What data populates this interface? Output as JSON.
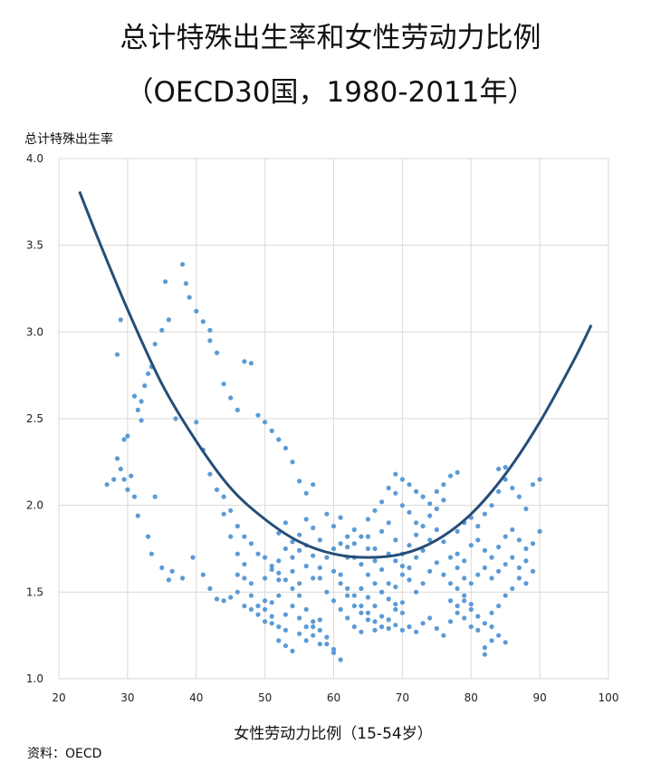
{
  "chart_data": {
    "type": "scatter",
    "title": "总计特殊出生率和女性劳动力比例",
    "subtitle": "（OECD30国，1980-2011年）",
    "xlabel": "女性劳动力比例（15-54岁）",
    "ylabel": "总计特殊出生率",
    "xlim": [
      20,
      100
    ],
    "ylim": [
      1.0,
      4.0
    ],
    "x_ticks": [
      "20",
      "30",
      "40",
      "50",
      "60",
      "70",
      "80",
      "90",
      "100"
    ],
    "y_ticks": [
      "1.0",
      "1.5",
      "2.0",
      "2.5",
      "3.0",
      "3.5",
      "4.0"
    ],
    "grid": true,
    "colors": {
      "points": "#5b9bd5",
      "trend": "#254e78",
      "grid": "#d9d9d9"
    },
    "trend_line": {
      "x": [
        23,
        26,
        30,
        35,
        40,
        45,
        50,
        55,
        60,
        65,
        70,
        75,
        80,
        85,
        90,
        95,
        97.5
      ],
      "y": [
        3.81,
        3.51,
        3.13,
        2.7,
        2.37,
        2.1,
        1.92,
        1.79,
        1.72,
        1.7,
        1.72,
        1.8,
        1.95,
        2.18,
        2.48,
        2.84,
        3.04
      ]
    },
    "points": [
      [
        27,
        2.12
      ],
      [
        28,
        2.15
      ],
      [
        28.5,
        2.27
      ],
      [
        29,
        2.21
      ],
      [
        29.5,
        2.15
      ],
      [
        30,
        2.09
      ],
      [
        30.5,
        2.17
      ],
      [
        31,
        2.05
      ],
      [
        31.5,
        1.94
      ],
      [
        29,
        3.07
      ],
      [
        28.5,
        2.87
      ],
      [
        30,
        2.4
      ],
      [
        29.5,
        2.38
      ],
      [
        31,
        2.63
      ],
      [
        31.5,
        2.55
      ],
      [
        32,
        2.49
      ],
      [
        32.5,
        2.69
      ],
      [
        33,
        2.76
      ],
      [
        33.5,
        2.8
      ],
      [
        34,
        2.93
      ],
      [
        35,
        3.01
      ],
      [
        35.5,
        3.29
      ],
      [
        36,
        3.07
      ],
      [
        37,
        2.5
      ],
      [
        38,
        3.39
      ],
      [
        38.5,
        3.28
      ],
      [
        39,
        3.2
      ],
      [
        40,
        3.12
      ],
      [
        41,
        3.06
      ],
      [
        42,
        3.01
      ],
      [
        32,
        2.6
      ],
      [
        33,
        1.82
      ],
      [
        33.5,
        1.72
      ],
      [
        34,
        2.05
      ],
      [
        35,
        1.64
      ],
      [
        36,
        1.57
      ],
      [
        36.5,
        1.62
      ],
      [
        38,
        1.58
      ],
      [
        39.5,
        1.7
      ],
      [
        40,
        2.48
      ],
      [
        41,
        2.32
      ],
      [
        42,
        2.18
      ],
      [
        43,
        2.09
      ],
      [
        44,
        1.95
      ],
      [
        45,
        1.82
      ],
      [
        46,
        1.72
      ],
      [
        47,
        1.58
      ],
      [
        48,
        1.48
      ],
      [
        49,
        1.42
      ],
      [
        50,
        1.33
      ],
      [
        51,
        1.32
      ],
      [
        52,
        1.22
      ],
      [
        53,
        1.19
      ],
      [
        54,
        1.16
      ],
      [
        42,
        2.95
      ],
      [
        43,
        2.88
      ],
      [
        44,
        2.7
      ],
      [
        45,
        2.62
      ],
      [
        46,
        2.55
      ],
      [
        47,
        2.83
      ],
      [
        48,
        2.82
      ],
      [
        49,
        2.52
      ],
      [
        50,
        2.48
      ],
      [
        51,
        2.43
      ],
      [
        52,
        2.38
      ],
      [
        53,
        2.33
      ],
      [
        54,
        2.25
      ],
      [
        55,
        2.14
      ],
      [
        56,
        2.07
      ],
      [
        57,
        2.12
      ],
      [
        44,
        2.05
      ],
      [
        45,
        1.97
      ],
      [
        46,
        1.88
      ],
      [
        47,
        1.82
      ],
      [
        48,
        1.78
      ],
      [
        49,
        1.72
      ],
      [
        50,
        1.7
      ],
      [
        51,
        1.65
      ],
      [
        52,
        1.61
      ],
      [
        53,
        1.57
      ],
      [
        54,
        1.52
      ],
      [
        55,
        1.48
      ],
      [
        56,
        1.4
      ],
      [
        57,
        1.33
      ],
      [
        58,
        1.28
      ],
      [
        59,
        1.24
      ],
      [
        60,
        1.17
      ],
      [
        61,
        1.11
      ],
      [
        41,
        1.6
      ],
      [
        42,
        1.52
      ],
      [
        43,
        1.46
      ],
      [
        44,
        1.45
      ],
      [
        45,
        1.47
      ],
      [
        46,
        1.5
      ],
      [
        47,
        1.42
      ],
      [
        48,
        1.4
      ],
      [
        49,
        1.37
      ],
      [
        50,
        1.45
      ],
      [
        51,
        1.36
      ],
      [
        52,
        1.3
      ],
      [
        53,
        1.28
      ],
      [
        55,
        1.26
      ],
      [
        56,
        1.22
      ],
      [
        57,
        1.3
      ],
      [
        58,
        1.34
      ],
      [
        59,
        1.2
      ],
      [
        60,
        1.15
      ],
      [
        46,
        1.6
      ],
      [
        47,
        1.66
      ],
      [
        48,
        1.55
      ],
      [
        50,
        1.58
      ],
      [
        51,
        1.63
      ],
      [
        52,
        1.57
      ],
      [
        54,
        1.62
      ],
      [
        55,
        1.55
      ],
      [
        56,
        1.65
      ],
      [
        57,
        1.71
      ],
      [
        58,
        1.58
      ],
      [
        59,
        1.5
      ],
      [
        60,
        1.45
      ],
      [
        61,
        1.4
      ],
      [
        62,
        1.35
      ],
      [
        63,
        1.3
      ],
      [
        64,
        1.27
      ],
      [
        52,
        1.84
      ],
      [
        53,
        1.9
      ],
      [
        54,
        1.79
      ],
      [
        55,
        1.83
      ],
      [
        56,
        1.92
      ],
      [
        57,
        1.87
      ],
      [
        58,
        1.8
      ],
      [
        59,
        1.95
      ],
      [
        60,
        1.88
      ],
      [
        61,
        1.93
      ],
      [
        62,
        1.76
      ],
      [
        63,
        1.7
      ],
      [
        64,
        1.66
      ],
      [
        65,
        1.6
      ],
      [
        66,
        1.55
      ],
      [
        67,
        1.5
      ],
      [
        68,
        1.46
      ],
      [
        69,
        1.43
      ],
      [
        70,
        1.38
      ],
      [
        61,
        1.6
      ],
      [
        62,
        1.52
      ],
      [
        63,
        1.48
      ],
      [
        64,
        1.42
      ],
      [
        65,
        1.38
      ],
      [
        66,
        1.33
      ],
      [
        67,
        1.3
      ],
      [
        68,
        1.29
      ],
      [
        69,
        1.31
      ],
      [
        70,
        1.28
      ],
      [
        71,
        1.3
      ],
      [
        72,
        1.27
      ],
      [
        73,
        1.32
      ],
      [
        74,
        1.35
      ],
      [
        75,
        1.29
      ],
      [
        76,
        1.25
      ],
      [
        77,
        1.33
      ],
      [
        78,
        1.38
      ],
      [
        62,
        1.7
      ],
      [
        63,
        1.78
      ],
      [
        64,
        1.82
      ],
      [
        65,
        1.75
      ],
      [
        66,
        1.68
      ],
      [
        67,
        1.85
      ],
      [
        68,
        1.9
      ],
      [
        69,
        1.8
      ],
      [
        70,
        1.72
      ],
      [
        71,
        1.77
      ],
      [
        72,
        1.83
      ],
      [
        73,
        1.74
      ],
      [
        74,
        1.8
      ],
      [
        75,
        1.86
      ],
      [
        76,
        1.79
      ],
      [
        77,
        1.7
      ],
      [
        78,
        1.64
      ],
      [
        79,
        1.58
      ],
      [
        65,
        1.92
      ],
      [
        66,
        1.97
      ],
      [
        67,
        2.02
      ],
      [
        68,
        2.1
      ],
      [
        69,
        2.07
      ],
      [
        70,
        2.0
      ],
      [
        71,
        1.96
      ],
      [
        72,
        1.9
      ],
      [
        73,
        2.05
      ],
      [
        74,
        2.01
      ],
      [
        75,
        2.08
      ],
      [
        76,
        2.12
      ],
      [
        77,
        2.17
      ],
      [
        78,
        2.19
      ],
      [
        76,
        2.03
      ],
      [
        75,
        1.98
      ],
      [
        74,
        1.94
      ],
      [
        64,
        1.52
      ],
      [
        65,
        1.47
      ],
      [
        66,
        1.42
      ],
      [
        67,
        1.5
      ],
      [
        68,
        1.55
      ],
      [
        69,
        1.53
      ],
      [
        70,
        1.6
      ],
      [
        71,
        1.57
      ],
      [
        72,
        1.5
      ],
      [
        73,
        1.55
      ],
      [
        74,
        1.62
      ],
      [
        75,
        1.67
      ],
      [
        76,
        1.6
      ],
      [
        77,
        1.55
      ],
      [
        78,
        1.52
      ],
      [
        79,
        1.48
      ],
      [
        80,
        1.43
      ],
      [
        78,
        1.85
      ],
      [
        79,
        1.9
      ],
      [
        80,
        1.93
      ],
      [
        81,
        1.88
      ],
      [
        82,
        1.95
      ],
      [
        83,
        2.0
      ],
      [
        84,
        2.08
      ],
      [
        85,
        2.15
      ],
      [
        86,
        2.1
      ],
      [
        87,
        2.05
      ],
      [
        88,
        1.98
      ],
      [
        89,
        2.12
      ],
      [
        90,
        2.15
      ],
      [
        84,
        2.21
      ],
      [
        85,
        2.22
      ],
      [
        78,
        1.72
      ],
      [
        79,
        1.68
      ],
      [
        80,
        1.77
      ],
      [
        81,
        1.8
      ],
      [
        82,
        1.74
      ],
      [
        83,
        1.7
      ],
      [
        84,
        1.76
      ],
      [
        85,
        1.82
      ],
      [
        86,
        1.86
      ],
      [
        87,
        1.8
      ],
      [
        88,
        1.75
      ],
      [
        89,
        1.78
      ],
      [
        90,
        1.85
      ],
      [
        79,
        1.45
      ],
      [
        80,
        1.4
      ],
      [
        81,
        1.36
      ],
      [
        82,
        1.32
      ],
      [
        83,
        1.38
      ],
      [
        84,
        1.42
      ],
      [
        85,
        1.48
      ],
      [
        86,
        1.52
      ],
      [
        87,
        1.58
      ],
      [
        88,
        1.55
      ],
      [
        89,
        1.62
      ],
      [
        82,
        1.18
      ],
      [
        82,
        1.14
      ],
      [
        83,
        1.22
      ],
      [
        84,
        1.25
      ],
      [
        85,
        1.21
      ],
      [
        80,
        1.55
      ],
      [
        81,
        1.6
      ],
      [
        82,
        1.64
      ],
      [
        83,
        1.58
      ],
      [
        84,
        1.62
      ],
      [
        85,
        1.66
      ],
      [
        86,
        1.7
      ],
      [
        87,
        1.64
      ],
      [
        88,
        1.68
      ],
      [
        81,
        1.28
      ],
      [
        83,
        1.3
      ],
      [
        80,
        1.3
      ],
      [
        79,
        1.35
      ],
      [
        78,
        1.42
      ],
      [
        77,
        1.45
      ],
      [
        69,
        2.18
      ],
      [
        70,
        2.15
      ],
      [
        71,
        2.12
      ],
      [
        72,
        2.08
      ],
      [
        73,
        1.88
      ],
      [
        72,
        1.7
      ],
      [
        71,
        1.64
      ],
      [
        70,
        1.65
      ],
      [
        69,
        1.68
      ],
      [
        68,
        1.72
      ],
      [
        67,
        1.63
      ],
      [
        66,
        1.75
      ],
      [
        65,
        1.82
      ],
      [
        57,
        1.58
      ],
      [
        58,
        1.64
      ],
      [
        59,
        1.7
      ],
      [
        60,
        1.75
      ],
      [
        61,
        1.78
      ],
      [
        62,
        1.82
      ],
      [
        63,
        1.86
      ],
      [
        60,
        1.62
      ],
      [
        61,
        1.55
      ],
      [
        62,
        1.48
      ],
      [
        63,
        1.42
      ],
      [
        64,
        1.38
      ],
      [
        65,
        1.34
      ],
      [
        66,
        1.28
      ],
      [
        67,
        1.36
      ],
      [
        68,
        1.34
      ],
      [
        69,
        1.4
      ],
      [
        70,
        1.44
      ],
      [
        50,
        1.4
      ],
      [
        51,
        1.44
      ],
      [
        52,
        1.48
      ],
      [
        53,
        1.37
      ],
      [
        54,
        1.42
      ],
      [
        55,
        1.35
      ],
      [
        56,
        1.3
      ],
      [
        57,
        1.25
      ],
      [
        58,
        1.2
      ],
      [
        54,
        1.7
      ],
      [
        55,
        1.74
      ],
      [
        56,
        1.77
      ],
      [
        53,
        1.75
      ],
      [
        52,
        1.68
      ]
    ]
  },
  "source": "资料：OECD"
}
